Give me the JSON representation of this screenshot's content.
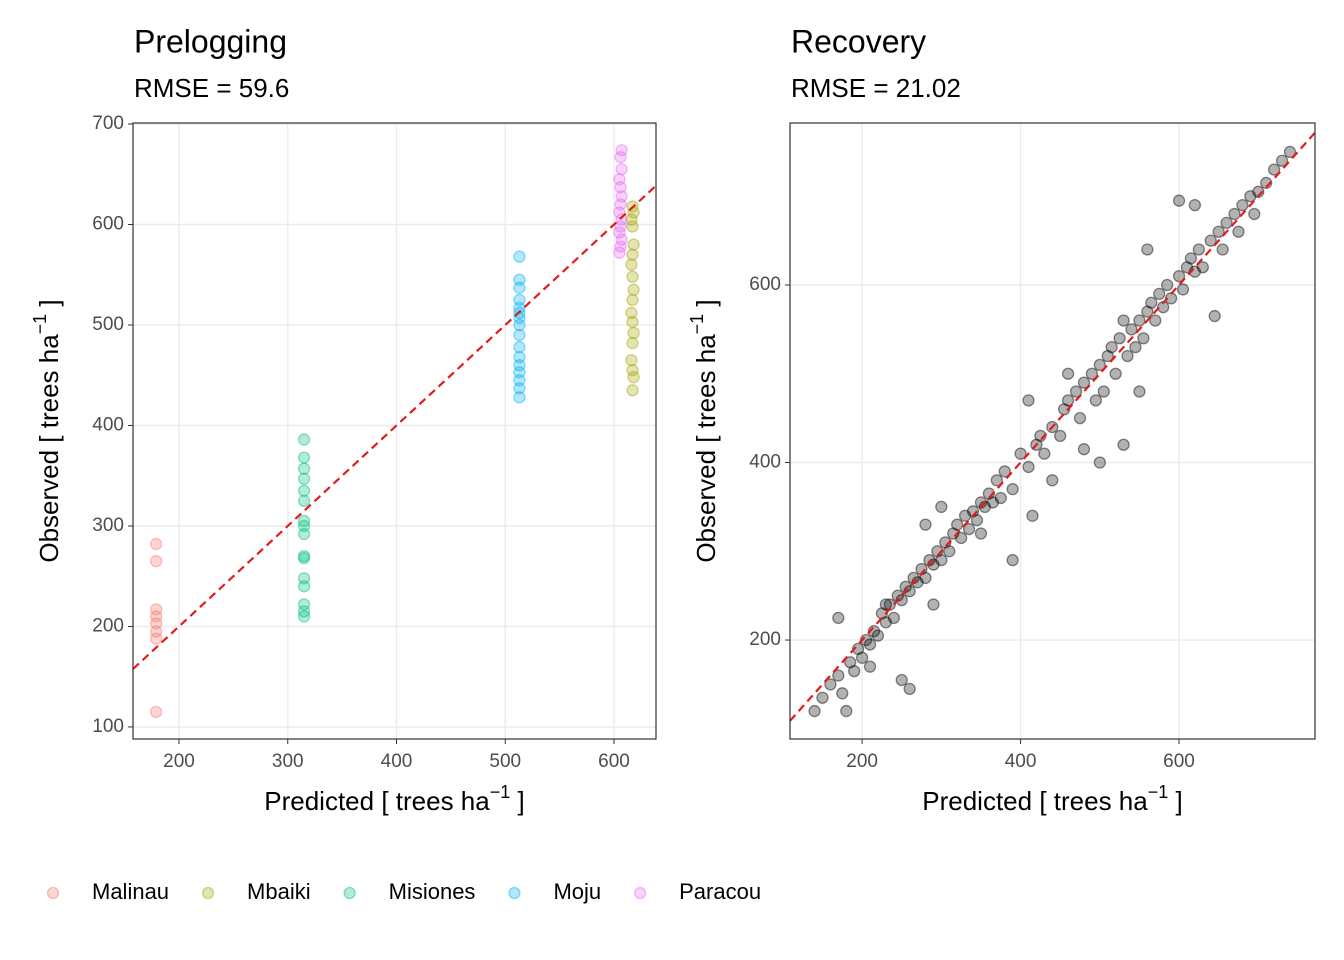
{
  "chart_data": [
    {
      "type": "scatter",
      "title": "Prelogging",
      "subtitle": "RMSE = 59.6",
      "xlabel": [
        "Predicted [ trees ha",
        "−1",
        " ]"
      ],
      "ylabel": [
        "Observed [ trees ha",
        "−1",
        " ]"
      ],
      "xlim": [
        157.7,
        638.6
      ],
      "ylim": [
        88,
        701
      ],
      "xticks": [
        200,
        300,
        400,
        500,
        600
      ],
      "yticks": [
        100,
        200,
        300,
        400,
        500,
        600,
        700
      ],
      "grid": true,
      "identity_line": true,
      "identity_color": "#e41a1c",
      "legend": "bottom",
      "series": [
        {
          "name": "Malinau",
          "color": "#F8766D",
          "x": [
            179,
            179,
            179,
            179,
            179,
            179,
            179,
            179
          ],
          "y": [
            282,
            265,
            217,
            210,
            203,
            195,
            188,
            115
          ]
        },
        {
          "name": "Mbaiki",
          "color": "#A3A500",
          "x": [
            617,
            618,
            616,
            617,
            618,
            617,
            616,
            617,
            618,
            617,
            616,
            617,
            618,
            617,
            616,
            617,
            618,
            617
          ],
          "y": [
            618,
            612,
            605,
            598,
            580,
            570,
            560,
            548,
            535,
            525,
            512,
            503,
            492,
            482,
            465,
            455,
            448,
            435
          ]
        },
        {
          "name": "Misiones",
          "color": "#00BF7D",
          "x": [
            315,
            315,
            315,
            315,
            315,
            315,
            315,
            315,
            315,
            315,
            315,
            315,
            315,
            315,
            315,
            315
          ],
          "y": [
            386,
            368,
            357,
            347,
            335,
            325,
            305,
            300,
            292,
            270,
            268,
            248,
            240,
            222,
            215,
            210
          ]
        },
        {
          "name": "Moju",
          "color": "#00B0F6",
          "x": [
            513,
            513,
            513,
            513,
            513,
            513,
            513,
            513,
            513,
            513,
            513,
            513,
            513,
            513,
            513,
            513
          ],
          "y": [
            568,
            545,
            537,
            525,
            517,
            512,
            507,
            500,
            490,
            478,
            468,
            460,
            453,
            445,
            437,
            428
          ]
        },
        {
          "name": "Paracou",
          "color": "#E76BF3",
          "x": [
            607,
            606,
            607,
            605,
            606,
            607,
            606,
            605,
            607,
            606,
            605,
            607,
            606,
            605
          ],
          "y": [
            674,
            667,
            655,
            645,
            637,
            628,
            620,
            612,
            605,
            598,
            592,
            585,
            578,
            572
          ]
        }
      ]
    },
    {
      "type": "scatter",
      "title": "Recovery",
      "subtitle": "RMSE = 21.02",
      "xlabel": [
        "Predicted [ trees ha",
        "−1",
        " ]"
      ],
      "ylabel": [
        "Observed [ trees ha",
        "−1",
        " ]"
      ],
      "xlim": [
        109,
        771.6
      ],
      "ylim": [
        88.5,
        782.5
      ],
      "xticks": [
        200,
        400,
        600
      ],
      "yticks": [
        200,
        400,
        600
      ],
      "grid": true,
      "identity_line": true,
      "identity_color": "#e41a1c",
      "series": [
        {
          "color": "#000000",
          "x": [
            140,
            150,
            160,
            170,
            175,
            180,
            185,
            190,
            195,
            200,
            205,
            210,
            215,
            220,
            225,
            230,
            235,
            240,
            245,
            250,
            255,
            260,
            265,
            270,
            275,
            280,
            285,
            290,
            295,
            300,
            305,
            310,
            315,
            320,
            325,
            330,
            335,
            340,
            345,
            350,
            355,
            360,
            365,
            370,
            375,
            380,
            390,
            400,
            410,
            415,
            420,
            425,
            430,
            440,
            450,
            455,
            460,
            470,
            475,
            480,
            490,
            495,
            500,
            505,
            510,
            515,
            520,
            525,
            530,
            535,
            540,
            545,
            550,
            555,
            560,
            565,
            570,
            575,
            580,
            585,
            590,
            600,
            605,
            610,
            615,
            620,
            625,
            630,
            640,
            645,
            650,
            655,
            660,
            670,
            675,
            680,
            690,
            695,
            700,
            710,
            720,
            730,
            740,
            250,
            260,
            230,
            290,
            390,
            410,
            530,
            480,
            560,
            600,
            620,
            350,
            280,
            210,
            300,
            440,
            500,
            460,
            550,
            170
          ],
          "y": [
            120,
            135,
            150,
            160,
            140,
            120,
            175,
            165,
            190,
            180,
            200,
            195,
            210,
            205,
            230,
            220,
            240,
            225,
            250,
            245,
            260,
            255,
            270,
            265,
            280,
            270,
            290,
            285,
            300,
            290,
            310,
            300,
            320,
            330,
            315,
            340,
            325,
            345,
            335,
            355,
            350,
            365,
            355,
            380,
            360,
            390,
            370,
            410,
            395,
            340,
            420,
            430,
            410,
            440,
            430,
            460,
            470,
            480,
            450,
            490,
            500,
            470,
            510,
            480,
            520,
            530,
            500,
            540,
            560,
            520,
            550,
            530,
            560,
            540,
            570,
            580,
            560,
            590,
            575,
            600,
            585,
            610,
            595,
            620,
            630,
            615,
            640,
            620,
            650,
            565,
            660,
            640,
            670,
            680,
            660,
            690,
            700,
            680,
            705,
            715,
            730,
            740,
            750,
            155,
            145,
            240,
            240,
            290,
            470,
            420,
            415,
            640,
            695,
            690,
            320,
            330,
            170,
            350,
            380,
            400,
            500,
            480,
            225
          ]
        }
      ]
    }
  ]
}
